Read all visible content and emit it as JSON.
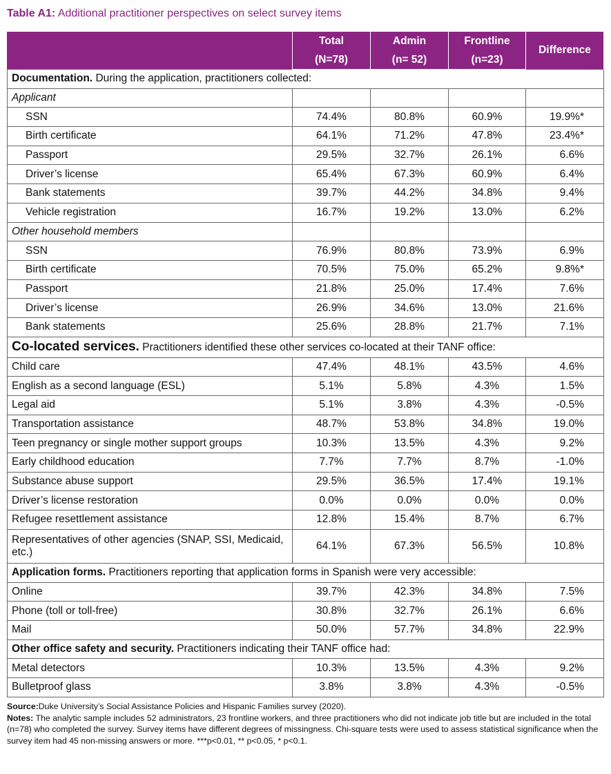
{
  "title": {
    "label": "Table A1:",
    "text": "Additional practitioner perspectives on select survey items"
  },
  "table": {
    "columns": [
      {
        "name": "Total",
        "n": "(N=78)"
      },
      {
        "name": "Admin",
        "n": "(n= 52)"
      },
      {
        "name": "Frontline",
        "n": "(n=23)"
      },
      {
        "name": "Difference"
      }
    ],
    "sections": [
      {
        "heading": "Documentation.",
        "description": "During the application, practitioners collected:",
        "subgroups": [
          {
            "label": "Applicant",
            "rows": [
              [
                "SSN",
                "74.4%",
                "80.8%",
                "60.9%",
                "19.9%*"
              ],
              [
                "Birth certificate",
                "64.1%",
                "71.2%",
                "47.8%",
                "23.4%*"
              ],
              [
                "Passport",
                "29.5%",
                "32.7%",
                "26.1%",
                "6.6%"
              ],
              [
                "Driver’s license",
                "65.4%",
                "67.3%",
                "60.9%",
                "6.4%"
              ],
              [
                "Bank statements",
                "39.7%",
                "44.2%",
                "34.8%",
                "9.4%"
              ],
              [
                "Vehicle registration",
                "16.7%",
                "19.2%",
                "13.0%",
                "6.2%"
              ]
            ]
          },
          {
            "label": "Other household members",
            "rows": [
              [
                "SSN",
                "76.9%",
                "80.8%",
                "73.9%",
                "6.9%"
              ],
              [
                "Birth certificate",
                "70.5%",
                "75.0%",
                "65.2%",
                "9.8%*"
              ],
              [
                "Passport",
                "21.8%",
                "25.0%",
                "17.4%",
                "7.6%"
              ],
              [
                "Driver’s license",
                "26.9%",
                "34.6%",
                "13.0%",
                "21.6%"
              ],
              [
                "Bank statements",
                "25.6%",
                "28.8%",
                "21.7%",
                "7.1%"
              ]
            ]
          }
        ]
      },
      {
        "heading": "Co-located services.",
        "description": "Practitioners identified these other services co-located at their TANF office:",
        "rows": [
          [
            "Child care",
            "47.4%",
            "48.1%",
            "43.5%",
            "4.6%"
          ],
          [
            "English as a second language (ESL)",
            "5.1%",
            "5.8%",
            "4.3%",
            "1.5%"
          ],
          [
            "Legal aid",
            "5.1%",
            "3.8%",
            "4.3%",
            "-0.5%"
          ],
          [
            "Transportation assistance",
            "48.7%",
            "53.8%",
            "34.8%",
            "19.0%"
          ],
          [
            "Teen pregnancy or single mother support groups",
            "10.3%",
            "13.5%",
            "4.3%",
            "9.2%"
          ],
          [
            "Early childhood education",
            "7.7%",
            "7.7%",
            "8.7%",
            "-1.0%"
          ],
          [
            "Substance abuse support",
            "29.5%",
            "36.5%",
            "17.4%",
            "19.1%"
          ],
          [
            "Driver’s license restoration",
            "0.0%",
            "0.0%",
            "0.0%",
            "0.0%"
          ],
          [
            "Refugee resettlement assistance",
            "12.8%",
            "15.4%",
            "8.7%",
            "6.7%"
          ],
          [
            "Representatives of other agencies (SNAP, SSI, Medicaid, etc.)",
            "64.1%",
            "67.3%",
            "56.5%",
            "10.8%"
          ]
        ]
      },
      {
        "heading": "Application forms.",
        "description": "Practitioners reporting that application forms in Spanish were very accessible:",
        "rows": [
          [
            "Online",
            "39.7%",
            "42.3%",
            "34.8%",
            "7.5%"
          ],
          [
            "Phone (toll or toll-free)",
            "30.8%",
            "32.7%",
            "26.1%",
            "6.6%"
          ],
          [
            "Mail",
            "50.0%",
            "57.7%",
            "34.8%",
            "22.9%"
          ]
        ]
      },
      {
        "heading": "Other office safety and security.",
        "description": "Practitioners indicating their TANF office had:",
        "rows": [
          [
            "Metal detectors",
            "10.3%",
            "13.5%",
            "4.3%",
            "9.2%"
          ],
          [
            "Bulletproof glass",
            "3.8%",
            "3.8%",
            "4.3%",
            "-0.5%"
          ]
        ]
      }
    ]
  },
  "footer": {
    "source": {
      "label": "Source:",
      "text": "Duke University’s Social Assistance Policies and Hispanic Families survey (2020)."
    },
    "notes": {
      "label": "Notes:",
      "text": "The analytic sample includes 52 administrators, 23 frontline workers, and three practitioners who did not indicate job title but are included in the total (n=78) who completed the survey. Survey items have different degrees of missingness. Chi-square tests were used to assess statistical significance when the survey item had 45 non-missing answers or more. ***p<0.01, ** p<0.05, * p<0.1."
    }
  }
}
